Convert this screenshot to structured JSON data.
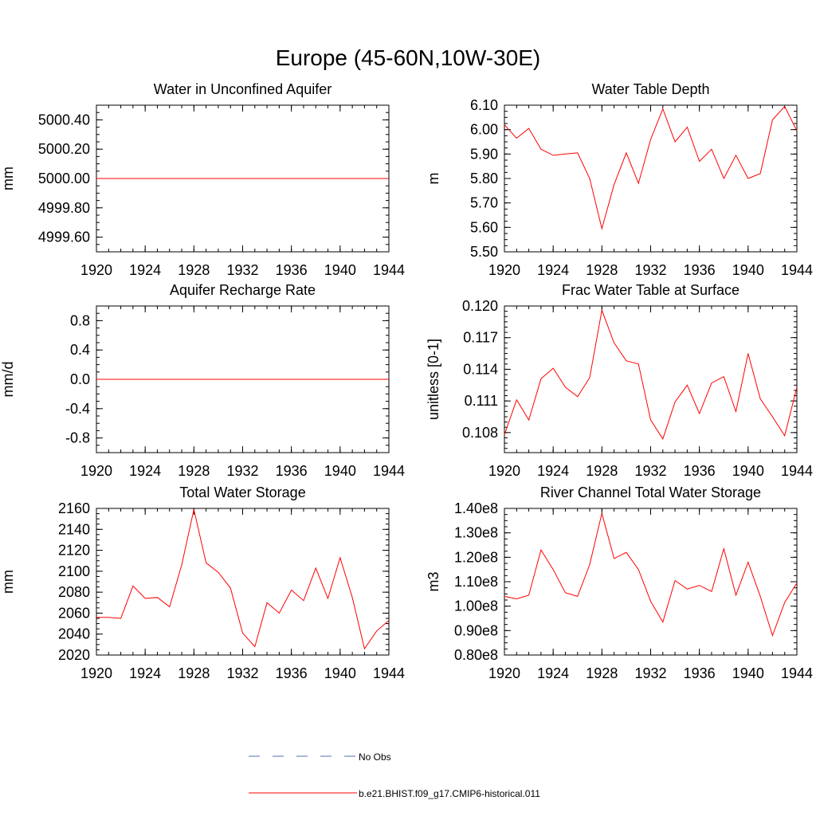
{
  "figure_title": "Europe (45-60N,10W-30E)",
  "legend": {
    "entries": [
      {
        "label": "No Obs",
        "color": "#5a6fb0",
        "dash": true
      },
      {
        "label": "b.e21.BHIST.f09_g17.CMIP6-historical.011",
        "color": "#ff0000",
        "dash": false
      }
    ]
  },
  "chart_data": [
    {
      "type": "line",
      "title": "Water in Unconfined Aquifer",
      "ylabel": "mm",
      "xlim": [
        1920,
        1944
      ],
      "ylim": [
        4999.5,
        5000.5
      ],
      "xticks": [
        1920,
        1924,
        1928,
        1932,
        1936,
        1940,
        1944
      ],
      "yticks": [
        4999.6,
        4999.8,
        5000.0,
        5000.2,
        5000.4
      ],
      "ytick_labels": [
        "4999.60",
        "4999.80",
        "5000.00",
        "5000.20",
        "5000.40"
      ],
      "yminor": 0.05,
      "x": [
        1920,
        1921,
        1922,
        1923,
        1924,
        1925,
        1926,
        1927,
        1928,
        1929,
        1930,
        1931,
        1932,
        1933,
        1934,
        1935,
        1936,
        1937,
        1938,
        1939,
        1940,
        1941,
        1942,
        1943,
        1944
      ],
      "series": [
        {
          "color": "#ff0000",
          "values": [
            5000,
            5000,
            5000,
            5000,
            5000,
            5000,
            5000,
            5000,
            5000,
            5000,
            5000,
            5000,
            5000,
            5000,
            5000,
            5000,
            5000,
            5000,
            5000,
            5000,
            5000,
            5000,
            5000,
            5000,
            5000
          ]
        }
      ]
    },
    {
      "type": "line",
      "title": "Water Table Depth",
      "ylabel": "m",
      "xlim": [
        1920,
        1944
      ],
      "ylim": [
        5.5,
        6.1
      ],
      "xticks": [
        1920,
        1924,
        1928,
        1932,
        1936,
        1940,
        1944
      ],
      "yticks": [
        5.5,
        5.6,
        5.7,
        5.8,
        5.9,
        6.0,
        6.1
      ],
      "ytick_labels": [
        "5.50",
        "5.60",
        "5.70",
        "5.80",
        "5.90",
        "6.00",
        "6.10"
      ],
      "yminor": 0.025,
      "x": [
        1920,
        1921,
        1922,
        1923,
        1924,
        1925,
        1926,
        1927,
        1928,
        1929,
        1930,
        1931,
        1932,
        1933,
        1934,
        1935,
        1936,
        1937,
        1938,
        1939,
        1940,
        1941,
        1942,
        1943,
        1944
      ],
      "series": [
        {
          "color": "#ff0000",
          "values": [
            6.02,
            5.965,
            6.005,
            5.92,
            5.895,
            5.9,
            5.905,
            5.8,
            5.595,
            5.775,
            5.905,
            5.78,
            5.96,
            6.085,
            5.95,
            6.01,
            5.87,
            5.92,
            5.8,
            5.895,
            5.8,
            5.82,
            6.04,
            6.095,
            5.995
          ]
        }
      ]
    },
    {
      "type": "line",
      "title": "Aquifer Recharge Rate",
      "ylabel": "mm/d",
      "xlim": [
        1920,
        1944
      ],
      "ylim": [
        -1.0,
        1.0
      ],
      "xticks": [
        1920,
        1924,
        1928,
        1932,
        1936,
        1940,
        1944
      ],
      "yticks": [
        -0.8,
        -0.4,
        0.0,
        0.4,
        0.8
      ],
      "ytick_labels": [
        "-0.8",
        "-0.4",
        "0.0",
        "0.4",
        "0.8"
      ],
      "yminor": 0.1,
      "x": [
        1920,
        1921,
        1922,
        1923,
        1924,
        1925,
        1926,
        1927,
        1928,
        1929,
        1930,
        1931,
        1932,
        1933,
        1934,
        1935,
        1936,
        1937,
        1938,
        1939,
        1940,
        1941,
        1942,
        1943,
        1944
      ],
      "series": [
        {
          "color": "#ff0000",
          "values": [
            0,
            0,
            0,
            0,
            0,
            0,
            0,
            0,
            0,
            0,
            0,
            0,
            0,
            0,
            0,
            0,
            0,
            0,
            0,
            0,
            0,
            0,
            0,
            0,
            0
          ]
        }
      ]
    },
    {
      "type": "line",
      "title": "Frac Water Table at Surface",
      "ylabel": "unitless [0-1]",
      "xlim": [
        1920,
        1944
      ],
      "ylim": [
        0.1061,
        0.12
      ],
      "xticks": [
        1920,
        1924,
        1928,
        1932,
        1936,
        1940,
        1944
      ],
      "yticks": [
        0.108,
        0.111,
        0.114,
        0.117,
        0.12
      ],
      "ytick_labels": [
        "0.108",
        "0.111",
        "0.114",
        "0.117",
        "0.120"
      ],
      "yminor": 0.0005,
      "x": [
        1920,
        1921,
        1922,
        1923,
        1924,
        1925,
        1926,
        1927,
        1928,
        1929,
        1930,
        1931,
        1932,
        1933,
        1934,
        1935,
        1936,
        1937,
        1938,
        1939,
        1940,
        1941,
        1942,
        1943,
        1944
      ],
      "series": [
        {
          "color": "#ff0000",
          "values": [
            0.1078,
            0.1111,
            0.1092,
            0.1131,
            0.1141,
            0.1123,
            0.1114,
            0.1132,
            0.1196,
            0.1165,
            0.1148,
            0.1145,
            0.1092,
            0.1074,
            0.1109,
            0.1125,
            0.1098,
            0.1127,
            0.1133,
            0.11,
            0.1155,
            0.1112,
            0.1095,
            0.1077,
            0.1123
          ]
        }
      ]
    },
    {
      "type": "line",
      "title": "Total Water Storage",
      "ylabel": "mm",
      "xlim": [
        1920,
        1944
      ],
      "ylim": [
        2020,
        2160
      ],
      "xticks": [
        1920,
        1924,
        1928,
        1932,
        1936,
        1940,
        1944
      ],
      "yticks": [
        2020,
        2040,
        2060,
        2080,
        2100,
        2120,
        2140,
        2160
      ],
      "ytick_labels": [
        "2020",
        "2040",
        "2060",
        "2080",
        "2100",
        "2120",
        "2140",
        "2160"
      ],
      "yminor": 5,
      "x": [
        1920,
        1921,
        1922,
        1923,
        1924,
        1925,
        1926,
        1927,
        1928,
        1929,
        1930,
        1931,
        1932,
        1933,
        1934,
        1935,
        1936,
        1937,
        1938,
        1939,
        1940,
        1941,
        1942,
        1943,
        1944
      ],
      "series": [
        {
          "color": "#ff0000",
          "values": [
            2056,
            2056,
            2055,
            2086,
            2074,
            2075,
            2066,
            2106,
            2159,
            2108,
            2099,
            2084,
            2041,
            2028,
            2070,
            2060,
            2082,
            2072,
            2103,
            2074,
            2113,
            2075,
            2026,
            2043,
            2053
          ]
        }
      ]
    },
    {
      "type": "line",
      "title": "River Channel Total Water Storage",
      "ylabel": "m3",
      "xlim": [
        1920,
        1944
      ],
      "ylim": [
        80000000,
        140000000
      ],
      "xticks": [
        1920,
        1924,
        1928,
        1932,
        1936,
        1940,
        1944
      ],
      "yticks": [
        80000000,
        90000000,
        100000000,
        110000000,
        120000000,
        130000000,
        140000000
      ],
      "ytick_labels": [
        "0.80e8",
        "0.90e8",
        "1.00e8",
        "1.10e8",
        "1.20e8",
        "1.30e8",
        "1.40e8"
      ],
      "yminor": 2500000,
      "x": [
        1920,
        1921,
        1922,
        1923,
        1924,
        1925,
        1926,
        1927,
        1928,
        1929,
        1930,
        1931,
        1932,
        1933,
        1934,
        1935,
        1936,
        1937,
        1938,
        1939,
        1940,
        1941,
        1942,
        1943,
        1944
      ],
      "series": [
        {
          "color": "#ff0000",
          "values": [
            104000000,
            103000000,
            104500000,
            123000000,
            115000000,
            105500000,
            104000000,
            117000000,
            138000000,
            119500000,
            122000000,
            115000000,
            102000000,
            93500000,
            110500000,
            107000000,
            108500000,
            106000000,
            123500000,
            104500000,
            118000000,
            104000000,
            88000000,
            101500000,
            109500000
          ]
        }
      ]
    }
  ]
}
